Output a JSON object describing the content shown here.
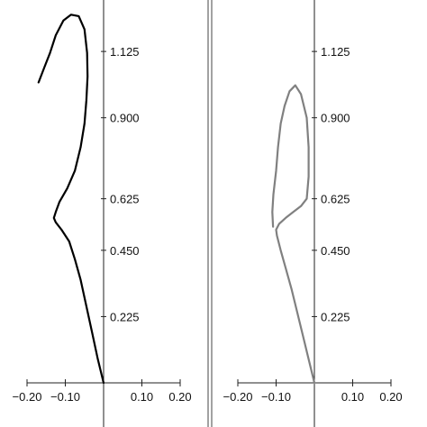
{
  "chart_data": [
    {
      "type": "line",
      "title": "",
      "xlabel": "",
      "ylabel": "",
      "xlim": [
        -0.2,
        0.2
      ],
      "ylim": [
        0,
        1.25
      ],
      "x_ticks": [
        "−0.20",
        "−0.10",
        "0.10",
        "0.20"
      ],
      "x_tick_values": [
        -0.2,
        -0.1,
        0.1,
        0.2
      ],
      "y_ticks": [
        "0.225",
        "0.450",
        "0.625",
        "0.900",
        "1.125"
      ],
      "y_tick_values": [
        0.225,
        0.45,
        0.625,
        0.9,
        1.125
      ],
      "grid": false,
      "series": [
        {
          "color": "#000000",
          "points": [
            [
              0.0,
              0.0
            ],
            [
              -0.015,
              0.08
            ],
            [
              -0.03,
              0.17
            ],
            [
              -0.045,
              0.26
            ],
            [
              -0.06,
              0.35
            ],
            [
              -0.075,
              0.42
            ],
            [
              -0.09,
              0.48
            ],
            [
              -0.11,
              0.52
            ],
            [
              -0.125,
              0.545
            ],
            [
              -0.13,
              0.56
            ],
            [
              -0.125,
              0.58
            ],
            [
              -0.115,
              0.615
            ],
            [
              -0.095,
              0.66
            ],
            [
              -0.075,
              0.72
            ],
            [
              -0.06,
              0.8
            ],
            [
              -0.05,
              0.88
            ],
            [
              -0.045,
              0.96
            ],
            [
              -0.042,
              1.04
            ],
            [
              -0.043,
              1.12
            ],
            [
              -0.05,
              1.2
            ],
            [
              -0.065,
              1.245
            ],
            [
              -0.085,
              1.25
            ],
            [
              -0.105,
              1.23
            ],
            [
              -0.125,
              1.18
            ],
            [
              -0.14,
              1.12
            ],
            [
              -0.155,
              1.07
            ],
            [
              -0.17,
              1.02
            ]
          ]
        }
      ]
    },
    {
      "type": "line",
      "title": "",
      "xlabel": "",
      "ylabel": "",
      "xlim": [
        -0.2,
        0.2
      ],
      "ylim": [
        0,
        1.25
      ],
      "x_ticks": [
        "−0.20",
        "−0.10",
        "0.10",
        "0.20"
      ],
      "x_tick_values": [
        -0.2,
        -0.1,
        0.1,
        0.2
      ],
      "y_ticks": [
        "0.225",
        "0.450",
        "0.625",
        "0.900",
        "1.125"
      ],
      "y_tick_values": [
        0.225,
        0.45,
        0.625,
        0.9,
        1.125
      ],
      "grid": false,
      "series": [
        {
          "color": "#808080",
          "points": [
            [
              0.0,
              0.0
            ],
            [
              -0.015,
              0.08
            ],
            [
              -0.03,
              0.16
            ],
            [
              -0.045,
              0.24
            ],
            [
              -0.06,
              0.32
            ],
            [
              -0.075,
              0.39
            ],
            [
              -0.088,
              0.45
            ],
            [
              -0.098,
              0.5
            ],
            [
              -0.1,
              0.52
            ],
            [
              -0.092,
              0.54
            ],
            [
              -0.075,
              0.56
            ],
            [
              -0.055,
              0.58
            ],
            [
              -0.035,
              0.6
            ],
            [
              -0.02,
              0.625
            ],
            [
              -0.015,
              0.7
            ],
            [
              -0.015,
              0.8
            ],
            [
              -0.02,
              0.9
            ],
            [
              -0.035,
              0.98
            ],
            [
              -0.05,
              1.01
            ],
            [
              -0.065,
              0.99
            ],
            [
              -0.078,
              0.94
            ],
            [
              -0.088,
              0.88
            ],
            [
              -0.095,
              0.8
            ],
            [
              -0.1,
              0.72
            ],
            [
              -0.107,
              0.64
            ],
            [
              -0.11,
              0.58
            ],
            [
              -0.108,
              0.53
            ]
          ]
        }
      ]
    }
  ]
}
